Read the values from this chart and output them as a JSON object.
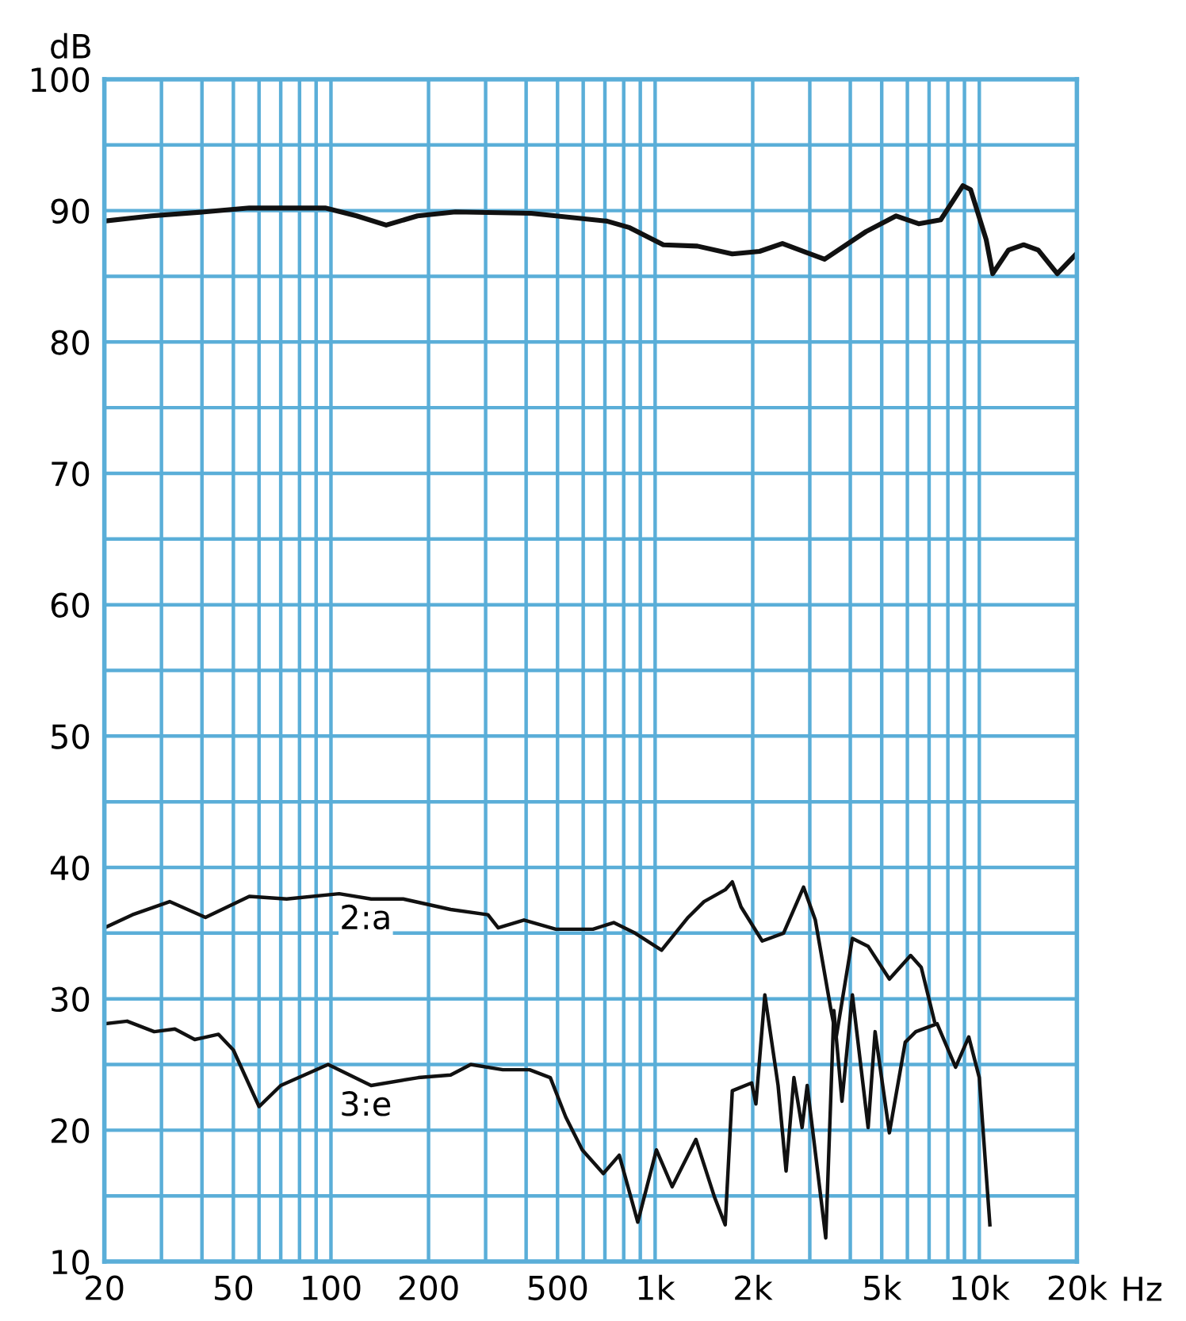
{
  "chart_data": {
    "type": "line",
    "xlabel": "Hz",
    "ylabel": "dB",
    "log": "x",
    "grid": true,
    "marker": "none",
    "line_style": "solid",
    "xlim": [
      20,
      20000
    ],
    "ylim": [
      10,
      100
    ],
    "xticks": [
      20,
      {
        "value": 30,
        "label": null
      },
      {
        "value": 40,
        "label": null
      },
      50,
      {
        "value": 60,
        "label": null
      },
      {
        "value": 70,
        "label": null
      },
      {
        "value": 80,
        "label": null
      },
      {
        "value": 90,
        "label": null
      },
      100,
      200,
      {
        "value": 300,
        "label": null
      },
      {
        "value": 400,
        "label": null
      },
      500,
      {
        "value": 600,
        "label": null
      },
      {
        "value": 700,
        "label": null
      },
      {
        "value": 800,
        "label": null
      },
      {
        "value": 900,
        "label": null
      },
      {
        "value": 1000,
        "label": "1k"
      },
      {
        "value": 2000,
        "label": "2k"
      },
      {
        "value": 3000,
        "label": null
      },
      {
        "value": 4000,
        "label": null
      },
      {
        "value": 5000,
        "label": "5k"
      },
      {
        "value": 6000,
        "label": null
      },
      {
        "value": 7000,
        "label": null
      },
      {
        "value": 8000,
        "label": null
      },
      {
        "value": 9000,
        "label": null
      },
      {
        "value": 10000,
        "label": "10k"
      },
      {
        "value": 20000,
        "label": "20k"
      }
    ],
    "yticks": [
      10,
      {
        "value": 15,
        "label": null
      },
      20,
      {
        "value": 25,
        "label": null
      },
      30,
      {
        "value": 35,
        "label": null
      },
      40,
      {
        "value": 45,
        "label": null
      },
      50,
      {
        "value": 55,
        "label": null
      },
      60,
      {
        "value": 65,
        "label": null
      },
      70,
      {
        "value": 75,
        "label": null
      },
      80,
      {
        "value": 85,
        "label": null
      },
      90,
      {
        "value": 95,
        "label": null
      },
      100
    ],
    "series": [
      {
        "color": "#111111",
        "x": [
          20,
          28,
          40.6,
          56,
          96,
          120,
          148,
          185,
          242,
          414,
          710,
          835,
          1060,
          1350,
          1730,
          2100,
          2470,
          3330,
          4470,
          5540,
          6500,
          7600,
          8900,
          9400,
          10500,
          11000,
          12300,
          13700,
          15200,
          17400,
          19900
        ],
        "values": [
          89.2,
          89.6,
          89.9,
          90.2,
          90.2,
          89.6,
          88.9,
          89.6,
          89.9,
          89.8,
          89.2,
          88.7,
          87.4,
          87.3,
          86.7,
          86.9,
          87.5,
          86.3,
          88.4,
          89.6,
          89.0,
          89.3,
          91.9,
          91.6,
          87.8,
          85.2,
          87.0,
          87.4,
          87.0,
          85.2,
          86.7
        ]
      },
      {
        "color": "#111111",
        "x": [
          20,
          24.4,
          31.8,
          41,
          56,
          73,
          106,
          133,
          167,
          234,
          305,
          328,
          394,
          494,
          643,
          745,
          867,
          1047,
          1264,
          1415,
          1645,
          1730,
          1841,
          2140,
          2490,
          2870,
          3120,
          3490,
          3620,
          4060,
          4540,
          5280,
          6140,
          6620,
          7270
        ],
        "values": [
          35.4,
          36.4,
          37.4,
          36.2,
          37.8,
          37.6,
          38.0,
          37.6,
          37.6,
          36.8,
          36.4,
          35.4,
          36.0,
          35.3,
          35.3,
          35.8,
          35.0,
          33.7,
          36.2,
          37.4,
          38.3,
          38.9,
          37.0,
          34.4,
          35.0,
          38.5,
          36.0,
          29.1,
          27.1,
          34.6,
          34.0,
          31.5,
          33.3,
          32.4,
          28.3
        ]
      },
      {
        "color": "#111111",
        "x": [
          20,
          23.5,
          28.5,
          33,
          38,
          45,
          50,
          60,
          70,
          98,
          133,
          186,
          234,
          270,
          339,
          410,
          475,
          530,
          596,
          692,
          775,
          884,
          1009,
          1129,
          1336,
          1525,
          1645,
          1730,
          1985,
          2046,
          2180,
          2395,
          2535,
          2680,
          2840,
          2945,
          3360,
          3560,
          3770,
          4060,
          4540,
          4770,
          5280,
          5910,
          6370,
          7410,
          8450,
          9280,
          10000,
          10780
        ],
        "values": [
          28.1,
          28.3,
          27.5,
          27.7,
          26.9,
          27.3,
          26.1,
          21.8,
          23.4,
          25.0,
          23.4,
          24.0,
          24.2,
          25.0,
          24.6,
          24.6,
          24.0,
          21.0,
          18.5,
          16.7,
          18.1,
          13.0,
          18.5,
          15.7,
          19.3,
          14.9,
          12.8,
          23.0,
          23.6,
          22.0,
          30.3,
          23.4,
          16.9,
          24.0,
          20.2,
          23.4,
          11.8,
          29.1,
          22.2,
          30.3,
          20.2,
          27.5,
          19.8,
          26.7,
          27.5,
          28.1,
          24.8,
          27.1,
          24.0,
          12.8
        ]
      }
    ],
    "annotations": [
      {
        "text": "2:a",
        "x": 128,
        "y": 36.0
      },
      {
        "text": "3:e",
        "x": 128,
        "y": 21.8
      }
    ]
  }
}
